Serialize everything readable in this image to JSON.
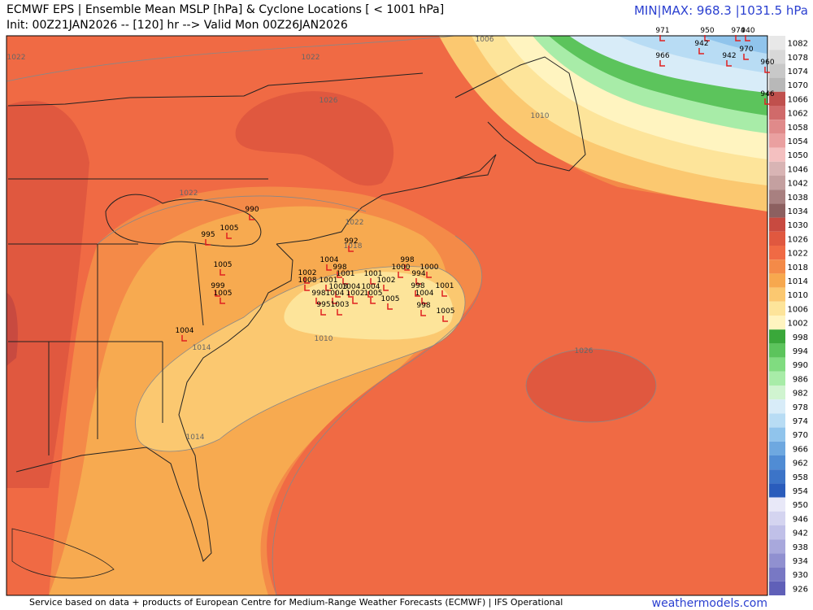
{
  "header": {
    "title": "ECMWF EPS | Ensemble Mean MSLP [hPa] & Cyclone Locations [ < 1001 hPa]",
    "subtitle": "Init: 00Z21JAN2026 -- [120] hr --> Valid Mon 00Z26JAN2026",
    "minmax": "MIN|MAX: 968.3 |1031.5 hPa"
  },
  "colorbar": {
    "levels": [
      1082,
      1078,
      1074,
      1070,
      1066,
      1062,
      1058,
      1054,
      1050,
      1046,
      1042,
      1038,
      1034,
      1030,
      1026,
      1022,
      1018,
      1014,
      1010,
      1006,
      1002,
      998,
      994,
      990,
      986,
      982,
      978,
      974,
      970,
      966,
      962,
      958,
      954,
      950,
      946,
      942,
      938,
      934,
      930,
      926
    ],
    "colors": [
      "#e8e8e8",
      "#d8d8d8",
      "#c8c8c8",
      "#b8b8b8",
      "#c0504d",
      "#d06a6a",
      "#e08a8a",
      "#eaa0a0",
      "#f4c0c0",
      "#d8b4b4",
      "#c4a0a0",
      "#a88080",
      "#8c6060",
      "#c84a40",
      "#e0583f",
      "#f06a44",
      "#f48a48",
      "#f7a84e",
      "#fbc870",
      "#fde49a",
      "#fff4c0",
      "#3aa83a",
      "#5cc45c",
      "#80dc80",
      "#a8eca8",
      "#d0f4d0",
      "#d8ecf8",
      "#b8dcf4",
      "#90c4ec",
      "#6ea8e0",
      "#508cd4",
      "#3c74c8",
      "#2a5cbc",
      "#e8e8f8",
      "#d4d4f0",
      "#c0c0e8",
      "#a8a8dc",
      "#9090d0",
      "#7878c4",
      "#6060b8"
    ]
  },
  "contour_labels": [
    "1022",
    "1022",
    "1026",
    "1006",
    "1010",
    "1022",
    "1022",
    "1018",
    "1010",
    "1014",
    "1014",
    "1026"
  ],
  "cyclones": [
    "971",
    "950",
    "974",
    "940",
    "942",
    "970",
    "966",
    "942",
    "960",
    "946",
    "990",
    "995",
    "1005",
    "992",
    "1004",
    "998",
    "998",
    "1000",
    "1000",
    "1001",
    "1001",
    "994",
    "1002",
    "1008",
    "1001",
    "1002",
    "1001",
    "1003",
    "1004",
    "1004",
    "998",
    "1004",
    "998",
    "1004",
    "1002",
    "1005",
    "1005",
    "995",
    "1003",
    "998",
    "1005",
    "1005",
    "999",
    "1005",
    "1004"
  ],
  "footer": {
    "credit": "Service based on data + products of European Centre for Medium-Range Weather Forecasts (ECMWF) | IFS Operational",
    "brand": "weathermodels.com"
  }
}
